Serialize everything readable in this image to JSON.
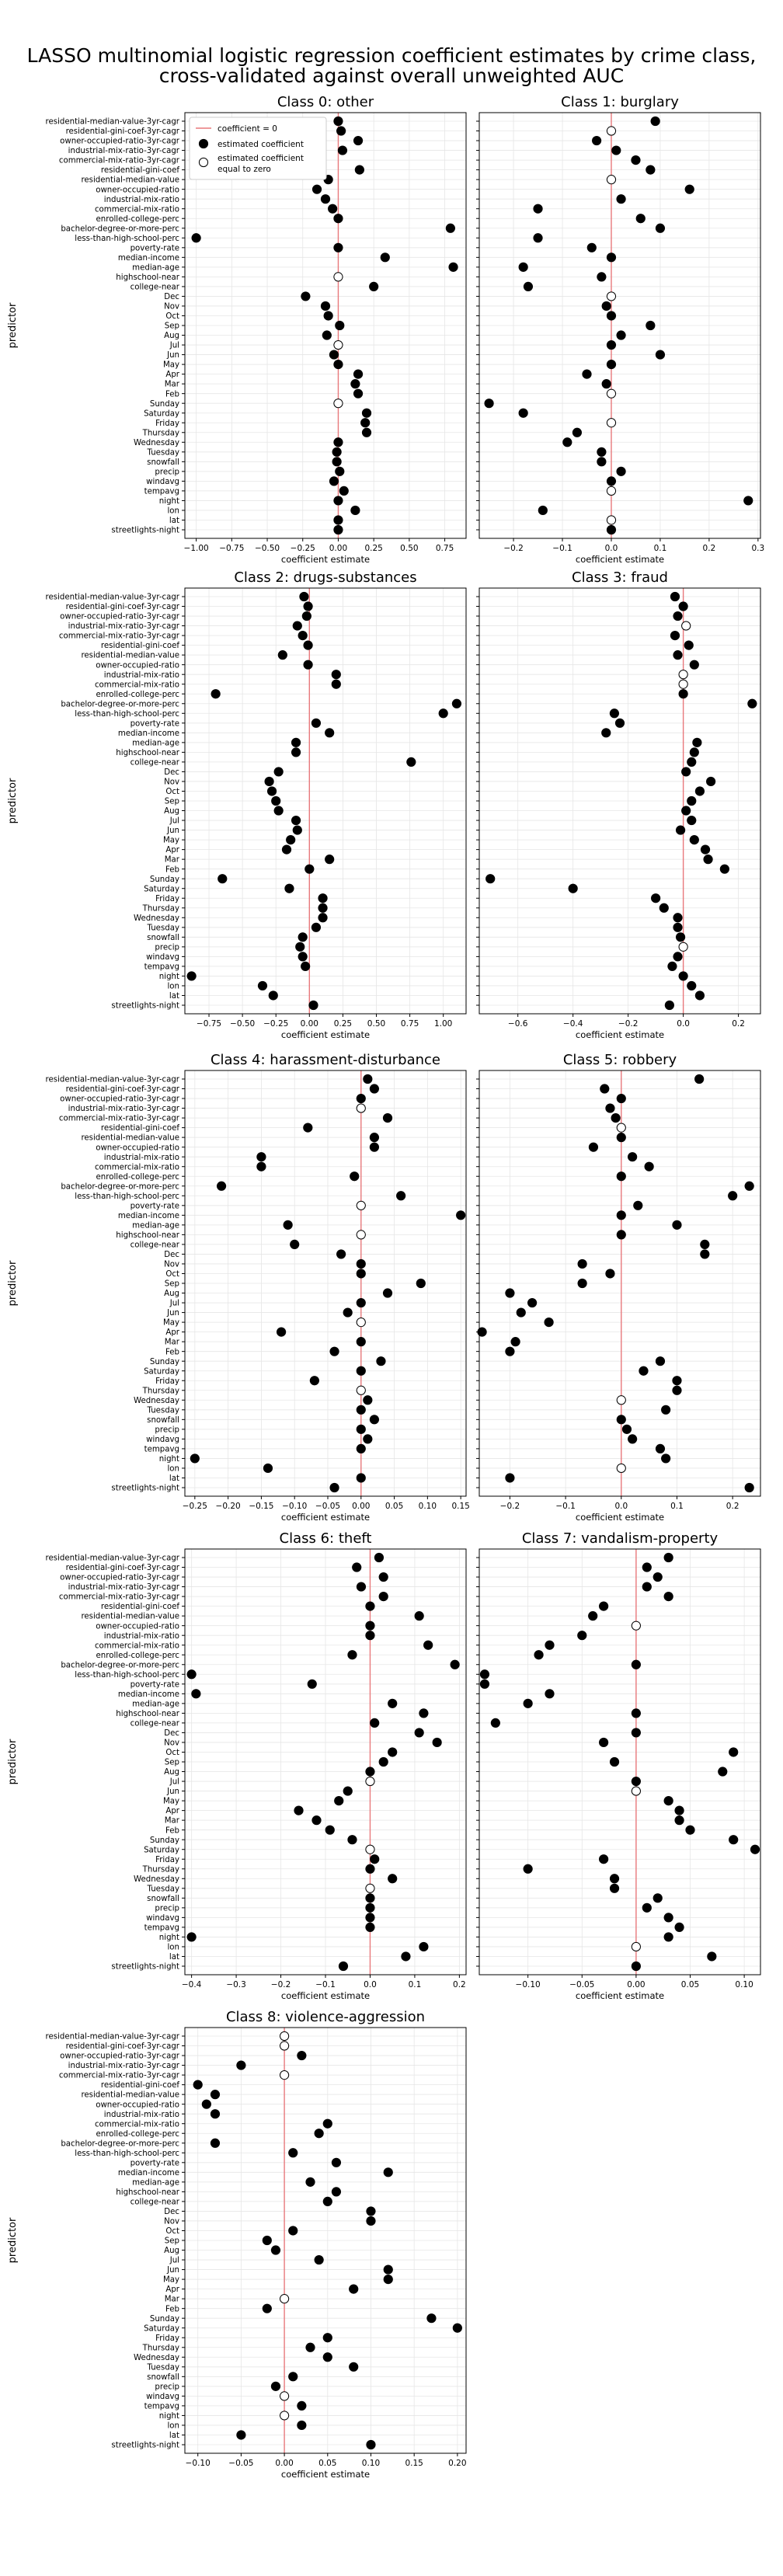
{
  "figure": {
    "title_line1": "LASSO multinomial logistic regression coefficient estimates by crime class,",
    "title_line2": "cross-validated against overall unweighted AUC"
  },
  "predictors": [
    "residential-median-value-3yr-cagr",
    "residential-gini-coef-3yr-cagr",
    "owner-occupied-ratio-3yr-cagr",
    "industrial-mix-ratio-3yr-cagr",
    "commercial-mix-ratio-3yr-cagr",
    "residential-gini-coef",
    "residential-median-value",
    "owner-occupied-ratio",
    "industrial-mix-ratio",
    "commercial-mix-ratio",
    "enrolled-college-perc",
    "bachelor-degree-or-more-perc",
    "less-than-high-school-perc",
    "poverty-rate",
    "median-income",
    "median-age",
    "highschool-near",
    "college-near",
    "Dec",
    "Nov",
    "Oct",
    "Sep",
    "Aug",
    "Jul",
    "Jun",
    "May",
    "Apr",
    "Mar",
    "Feb",
    "Sunday",
    "Saturday",
    "Friday",
    "Thursday",
    "Wednesday",
    "Tuesday",
    "snowfall",
    "precip",
    "windavg",
    "tempavg",
    "night",
    "lon",
    "lat",
    "streetlights-night"
  ],
  "legend": {
    "line": "coefficient = 0",
    "filled": "estimated coefficient",
    "hollow_line1": "estimated coefficient",
    "hollow_line2": "equal to zero"
  },
  "colors": {
    "zero_line": "#e8797c",
    "grid": "#e6e6e6",
    "marker": "#000000"
  },
  "chart_data": [
    {
      "type": "scatter",
      "title": "Class 0: other",
      "xlabel": "coefficient estimate",
      "ylabel": "predictor",
      "xlim": [
        -1.08,
        0.9
      ],
      "xticks": [
        -1.0,
        -0.75,
        -0.5,
        -0.25,
        0.0,
        0.25,
        0.5,
        0.75
      ],
      "xtick_labels": [
        "−1.00",
        "−0.75",
        "−0.50",
        "−0.25",
        "0.00",
        "0.25",
        "0.50",
        "0.75"
      ],
      "values": [
        0.0,
        0.02,
        0.14,
        0.03,
        -0.14,
        0.15,
        -0.07,
        -0.15,
        -0.09,
        -0.04,
        0.0,
        0.79,
        -1.0,
        0.0,
        0.33,
        0.81,
        0.0,
        0.25,
        -0.23,
        -0.09,
        -0.07,
        0.01,
        -0.08,
        0.0,
        -0.03,
        0.0,
        0.14,
        0.12,
        0.14,
        0.0,
        0.2,
        0.19,
        0.2,
        0.0,
        -0.01,
        -0.01,
        0.01,
        -0.03,
        0.04,
        0.0,
        0.12,
        0.0,
        0.0
      ],
      "zero": [
        false,
        false,
        false,
        false,
        false,
        false,
        false,
        false,
        false,
        false,
        false,
        false,
        false,
        false,
        false,
        false,
        true,
        false,
        false,
        false,
        false,
        false,
        false,
        true,
        false,
        false,
        false,
        false,
        false,
        true,
        false,
        false,
        false,
        false,
        false,
        false,
        false,
        false,
        false,
        false,
        false,
        false,
        false
      ]
    },
    {
      "type": "scatter",
      "title": "Class 1: burglary",
      "xlabel": "coefficient estimate",
      "ylabel": "",
      "xlim": [
        -0.27,
        0.305
      ],
      "xticks": [
        -0.2,
        -0.1,
        0.0,
        0.1,
        0.2,
        0.3
      ],
      "xtick_labels": [
        "−0.2",
        "−0.1",
        "0.0",
        "0.1",
        "0.2",
        "0.3"
      ],
      "values": [
        0.09,
        0.0,
        -0.03,
        0.01,
        0.05,
        0.08,
        0.0,
        0.16,
        0.02,
        -0.15,
        0.06,
        0.1,
        -0.15,
        -0.04,
        0.0,
        -0.18,
        -0.02,
        -0.17,
        0.0,
        -0.01,
        0.0,
        0.08,
        0.02,
        0.0,
        0.1,
        0.0,
        -0.05,
        -0.01,
        0.0,
        -0.25,
        -0.18,
        0.0,
        -0.07,
        -0.09,
        -0.02,
        -0.02,
        0.02,
        0.0,
        0.0,
        0.28,
        -0.14,
        0.0,
        0.0
      ],
      "zero": [
        false,
        true,
        false,
        false,
        false,
        false,
        true,
        false,
        false,
        false,
        false,
        false,
        false,
        false,
        false,
        false,
        false,
        false,
        true,
        false,
        false,
        false,
        false,
        false,
        false,
        false,
        false,
        false,
        true,
        false,
        false,
        true,
        false,
        false,
        false,
        false,
        false,
        false,
        true,
        false,
        false,
        true,
        false
      ]
    },
    {
      "type": "scatter",
      "title": "Class 2: drugs-substances",
      "xlabel": "coefficient estimate",
      "ylabel": "predictor",
      "xlim": [
        -0.93,
        1.17
      ],
      "xticks": [
        -0.75,
        -0.5,
        -0.25,
        0.0,
        0.25,
        0.5,
        0.75,
        1.0
      ],
      "xtick_labels": [
        "−0.75",
        "−0.50",
        "−0.25",
        "0.00",
        "0.25",
        "0.50",
        "0.75",
        "1.00"
      ],
      "values": [
        -0.04,
        -0.01,
        -0.02,
        -0.09,
        -0.05,
        -0.01,
        -0.2,
        -0.01,
        0.2,
        0.2,
        -0.7,
        1.1,
        1.0,
        0.05,
        0.15,
        -0.1,
        -0.1,
        0.76,
        -0.23,
        -0.3,
        -0.28,
        -0.25,
        -0.23,
        -0.1,
        -0.09,
        -0.14,
        -0.17,
        0.15,
        0.0,
        -0.65,
        -0.15,
        0.1,
        0.1,
        0.1,
        0.05,
        -0.05,
        -0.07,
        -0.05,
        -0.03,
        -0.88,
        -0.35,
        -0.27,
        0.03
      ],
      "zero": [
        false,
        false,
        false,
        false,
        false,
        false,
        false,
        false,
        false,
        false,
        false,
        false,
        false,
        false,
        false,
        false,
        false,
        false,
        false,
        false,
        false,
        false,
        false,
        false,
        false,
        false,
        false,
        false,
        false,
        false,
        false,
        false,
        false,
        false,
        false,
        false,
        false,
        false,
        false,
        false,
        false,
        false,
        false
      ]
    },
    {
      "type": "scatter",
      "title": "Class 3: fraud",
      "xlabel": "coefficient estimate",
      "ylabel": "",
      "xlim": [
        -0.74,
        0.28
      ],
      "xticks": [
        -0.6,
        -0.4,
        -0.2,
        0.0,
        0.2
      ],
      "xtick_labels": [
        "−0.6",
        "−0.4",
        "−0.2",
        "0.0",
        "0.2"
      ],
      "values": [
        -0.03,
        0.0,
        -0.02,
        0.01,
        -0.03,
        0.02,
        -0.02,
        0.04,
        0.0,
        0.0,
        0.0,
        0.25,
        -0.25,
        -0.23,
        -0.28,
        0.05,
        0.04,
        0.03,
        0.01,
        0.1,
        0.06,
        0.03,
        0.01,
        0.03,
        -0.01,
        0.04,
        0.08,
        0.09,
        0.15,
        -0.7,
        -0.4,
        -0.1,
        -0.07,
        -0.02,
        -0.02,
        -0.01,
        0.0,
        -0.02,
        -0.04,
        0.0,
        0.03,
        0.06,
        -0.05
      ],
      "zero": [
        false,
        false,
        false,
        true,
        false,
        false,
        false,
        false,
        true,
        true,
        false,
        false,
        false,
        false,
        false,
        false,
        false,
        false,
        false,
        false,
        false,
        false,
        false,
        false,
        false,
        false,
        false,
        false,
        false,
        false,
        false,
        false,
        false,
        false,
        false,
        false,
        true,
        false,
        false,
        false,
        false,
        false,
        false
      ]
    },
    {
      "type": "scatter",
      "title": "Class 4: harassment-disturbance",
      "xlabel": "coefficient estimate",
      "ylabel": "predictor",
      "xlim": [
        -0.265,
        0.158
      ],
      "xticks": [
        -0.25,
        -0.2,
        -0.15,
        -0.1,
        -0.05,
        0.0,
        0.05,
        0.1,
        0.15
      ],
      "xtick_labels": [
        "−0.25",
        "−0.20",
        "−0.15",
        "−0.10",
        "−0.05",
        "0.00",
        "0.05",
        "0.10",
        "0.15"
      ],
      "values": [
        0.01,
        0.02,
        0.0,
        0.0,
        0.04,
        -0.08,
        0.02,
        0.02,
        -0.15,
        -0.15,
        -0.01,
        -0.21,
        0.06,
        0.0,
        0.15,
        -0.11,
        0.0,
        -0.1,
        -0.03,
        0.0,
        0.0,
        0.09,
        0.04,
        0.0,
        -0.02,
        0.0,
        -0.12,
        0.0,
        -0.04,
        0.03,
        0.0,
        -0.07,
        0.0,
        0.01,
        0.0,
        0.02,
        0.0,
        0.01,
        0.0,
        -0.25,
        -0.14,
        0.0,
        -0.04
      ],
      "zero": [
        false,
        false,
        false,
        true,
        false,
        false,
        false,
        false,
        false,
        false,
        false,
        false,
        false,
        true,
        false,
        false,
        true,
        false,
        false,
        false,
        false,
        false,
        false,
        false,
        false,
        true,
        false,
        false,
        false,
        false,
        false,
        false,
        true,
        false,
        false,
        false,
        false,
        false,
        false,
        false,
        false,
        false,
        false
      ]
    },
    {
      "type": "scatter",
      "title": "Class 5: robbery",
      "xlabel": "coefficient estimate",
      "ylabel": "",
      "xlim": [
        -0.255,
        0.25
      ],
      "xticks": [
        -0.2,
        -0.1,
        0.0,
        0.1,
        0.2
      ],
      "xtick_labels": [
        "−0.2",
        "−0.1",
        "0.0",
        "0.1",
        "0.2"
      ],
      "values": [
        0.14,
        -0.03,
        0.0,
        -0.02,
        -0.01,
        0.0,
        0.0,
        -0.05,
        0.02,
        0.05,
        0.0,
        0.23,
        0.2,
        0.03,
        0.0,
        0.1,
        0.0,
        0.15,
        0.15,
        -0.07,
        -0.02,
        -0.07,
        -0.2,
        -0.16,
        -0.18,
        -0.13,
        -0.25,
        -0.19,
        -0.2,
        0.07,
        0.04,
        0.1,
        0.1,
        0.0,
        0.08,
        0.0,
        0.01,
        0.02,
        0.07,
        0.08,
        0.0,
        -0.2,
        0.23
      ],
      "zero": [
        false,
        false,
        false,
        false,
        false,
        true,
        false,
        false,
        false,
        false,
        false,
        false,
        false,
        false,
        false,
        false,
        false,
        false,
        false,
        false,
        false,
        false,
        false,
        false,
        false,
        false,
        false,
        false,
        false,
        false,
        false,
        false,
        false,
        true,
        false,
        false,
        false,
        false,
        false,
        false,
        true,
        false,
        false
      ]
    },
    {
      "type": "scatter",
      "title": "Class 6: theft",
      "xlabel": "coefficient estimate",
      "ylabel": "predictor",
      "xlim": [
        -0.415,
        0.215
      ],
      "xticks": [
        -0.4,
        -0.3,
        -0.2,
        -0.1,
        0.0,
        0.1,
        0.2
      ],
      "xtick_labels": [
        "−0.4",
        "−0.3",
        "−0.2",
        "−0.1",
        "0.0",
        "0.1",
        "0.2"
      ],
      "values": [
        0.02,
        -0.03,
        0.03,
        -0.02,
        0.03,
        0.0,
        0.11,
        0.0,
        0.0,
        0.13,
        -0.04,
        0.19,
        -0.4,
        -0.13,
        -0.39,
        0.05,
        0.12,
        0.01,
        0.11,
        0.15,
        0.05,
        0.03,
        0.0,
        0.0,
        -0.05,
        -0.07,
        -0.16,
        -0.12,
        -0.09,
        -0.04,
        0.0,
        0.01,
        0.0,
        0.05,
        0.0,
        0.0,
        0.0,
        0.0,
        0.0,
        -0.4,
        0.12,
        0.08,
        -0.06
      ],
      "zero": [
        false,
        false,
        false,
        false,
        false,
        false,
        false,
        false,
        false,
        false,
        false,
        false,
        false,
        false,
        false,
        false,
        false,
        false,
        false,
        false,
        false,
        false,
        false,
        true,
        false,
        false,
        false,
        false,
        false,
        false,
        true,
        false,
        false,
        false,
        true,
        false,
        false,
        false,
        false,
        false,
        false,
        false,
        false
      ]
    },
    {
      "type": "scatter",
      "title": "Class 7: vandalism-property",
      "xlabel": "coefficient estimate",
      "ylabel": "",
      "xlim": [
        -0.145,
        0.115
      ],
      "xticks": [
        -0.1,
        -0.05,
        0.0,
        0.05,
        0.1
      ],
      "xtick_labels": [
        "−0.10",
        "−0.05",
        "0.00",
        "0.05",
        "0.10"
      ],
      "values": [
        0.03,
        0.01,
        0.02,
        0.01,
        0.03,
        -0.03,
        -0.04,
        0.0,
        -0.05,
        -0.08,
        -0.09,
        0.0,
        -0.14,
        -0.14,
        -0.08,
        -0.1,
        0.0,
        -0.13,
        0.0,
        -0.03,
        0.09,
        -0.02,
        0.08,
        0.0,
        0.0,
        0.03,
        0.04,
        0.04,
        0.05,
        0.09,
        0.11,
        -0.03,
        -0.1,
        -0.02,
        -0.02,
        0.02,
        0.01,
        0.03,
        0.04,
        0.03,
        0.0,
        0.07,
        0.0
      ],
      "zero": [
        false,
        false,
        false,
        false,
        false,
        false,
        false,
        true,
        false,
        false,
        false,
        false,
        false,
        false,
        false,
        false,
        false,
        false,
        false,
        false,
        false,
        false,
        false,
        false,
        true,
        false,
        false,
        false,
        false,
        false,
        false,
        false,
        false,
        false,
        false,
        false,
        false,
        false,
        false,
        false,
        true,
        false,
        false
      ]
    },
    {
      "type": "scatter",
      "title": "Class 8: violence-aggression",
      "xlabel": "coefficient estimate",
      "ylabel": "predictor",
      "xlim": [
        -0.115,
        0.21
      ],
      "xticks": [
        -0.1,
        -0.05,
        0.0,
        0.05,
        0.1,
        0.15,
        0.2
      ],
      "xtick_labels": [
        "−0.10",
        "−0.05",
        "0.00",
        "0.05",
        "0.10",
        "0.15",
        "0.20"
      ],
      "values": [
        0.0,
        0.0,
        0.02,
        -0.05,
        0.0,
        -0.1,
        -0.08,
        -0.09,
        -0.08,
        0.05,
        0.04,
        -0.08,
        0.01,
        0.06,
        0.12,
        0.03,
        0.06,
        0.05,
        0.1,
        0.1,
        0.01,
        -0.02,
        -0.01,
        0.04,
        0.12,
        0.12,
        0.08,
        0.0,
        -0.02,
        0.17,
        0.2,
        0.05,
        0.03,
        0.05,
        0.08,
        0.01,
        -0.01,
        0.0,
        0.02,
        0.0,
        0.02,
        -0.05,
        0.1
      ],
      "zero": [
        true,
        true,
        false,
        false,
        true,
        false,
        false,
        false,
        false,
        false,
        false,
        false,
        false,
        false,
        false,
        false,
        false,
        false,
        false,
        false,
        false,
        false,
        false,
        false,
        false,
        false,
        false,
        true,
        false,
        false,
        false,
        false,
        false,
        false,
        false,
        false,
        false,
        true,
        false,
        true,
        false,
        false,
        false
      ]
    }
  ]
}
